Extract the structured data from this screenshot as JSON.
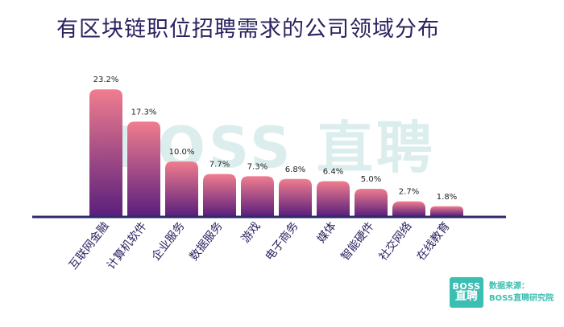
{
  "title": "有区块链职位招聘需求的公司领域分布",
  "watermark": {
    "brand": "BOSS",
    "name": "直聘"
  },
  "footer": {
    "logo_line1": "BOSS",
    "logo_line2": "直聘",
    "source_label": "数据来源：",
    "source_name": "BOSS直聘研究院"
  },
  "colors": {
    "bar_top": "#f07d8f",
    "bar_bottom": "#5a1f7c",
    "baseline": "#2e2a6b",
    "title": "#2a2360",
    "accent": "#3bbfb2"
  },
  "chart_data": {
    "type": "bar",
    "title": "有区块链职位招聘需求的公司领域分布",
    "categories": [
      "互联网金融",
      "计算机软件",
      "企业服务",
      "数据服务",
      "游戏",
      "电子商务",
      "媒体",
      "智能硬件",
      "社交网络",
      "在线教育"
    ],
    "values": [
      23.2,
      17.3,
      10.0,
      7.7,
      7.3,
      6.8,
      6.4,
      5.0,
      2.7,
      1.8
    ],
    "value_labels": [
      "23.2%",
      "17.3%",
      "10.0%",
      "7.7%",
      "7.3%",
      "6.8%",
      "6.4%",
      "5.0%",
      "2.7%",
      "1.8%"
    ],
    "unit": "%",
    "ylim": [
      0,
      25
    ],
    "grid": false,
    "legend": "none"
  }
}
